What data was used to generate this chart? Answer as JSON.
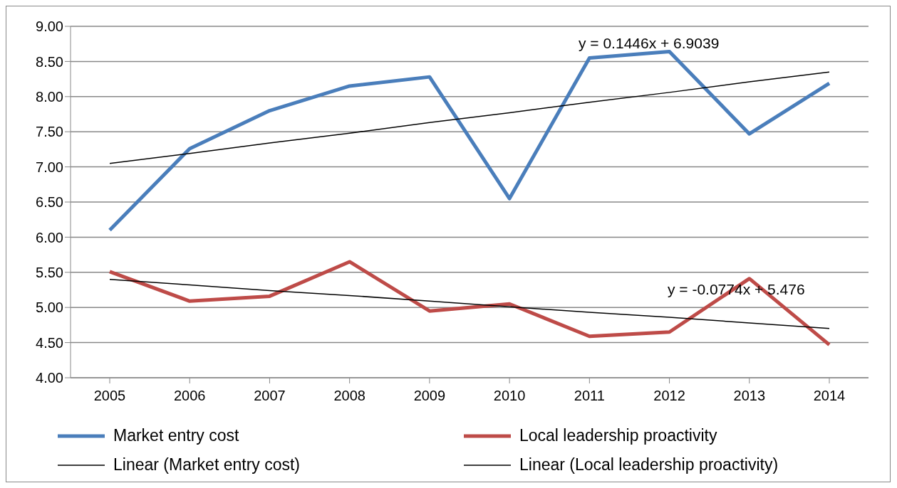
{
  "chart_data": {
    "type": "line",
    "categories": [
      "2005",
      "2006",
      "2007",
      "2008",
      "2009",
      "2010",
      "2011",
      "2012",
      "2013",
      "2014"
    ],
    "series": [
      {
        "name": "Market entry cost",
        "color": "#4a7ebb",
        "values": [
          6.1,
          7.26,
          7.8,
          8.15,
          8.28,
          6.55,
          8.55,
          8.64,
          7.47,
          8.19
        ]
      },
      {
        "name": "Local leadership proactivity",
        "color": "#be4b48",
        "values": [
          5.51,
          5.09,
          5.16,
          5.65,
          4.95,
          5.05,
          4.59,
          4.65,
          5.41,
          4.47
        ]
      },
      {
        "name": "Linear (Market entry cost)",
        "color": "#000000",
        "values": [
          7.05,
          7.19,
          7.34,
          7.48,
          7.63,
          7.77,
          7.92,
          8.06,
          8.21,
          8.35
        ]
      },
      {
        "name": "Linear (Local leadership proactivity)",
        "color": "#000000",
        "values": [
          5.4,
          5.32,
          5.24,
          5.17,
          5.09,
          5.01,
          4.93,
          4.86,
          4.78,
          4.7
        ]
      }
    ],
    "annotations": [
      "y = 0.1446x + 6.9039",
      "y = -0.0774x + 5.476"
    ],
    "ylim": [
      4,
      9
    ],
    "yticks": [
      {
        "value": 4,
        "label": "4.00"
      },
      {
        "value": 4.5,
        "label": "4.50"
      },
      {
        "value": 5,
        "label": "5.00"
      },
      {
        "value": 5.5,
        "label": "5.50"
      },
      {
        "value": 6,
        "label": "6.00"
      },
      {
        "value": 6.5,
        "label": "6.50"
      },
      {
        "value": 7,
        "label": "7.00"
      },
      {
        "value": 7.5,
        "label": "7.50"
      },
      {
        "value": 8,
        "label": "8.00"
      },
      {
        "value": 8.5,
        "label": "8.50"
      },
      {
        "value": 9,
        "label": "9.00"
      }
    ],
    "grid": "y",
    "legend": "bottom",
    "marker": "none"
  }
}
